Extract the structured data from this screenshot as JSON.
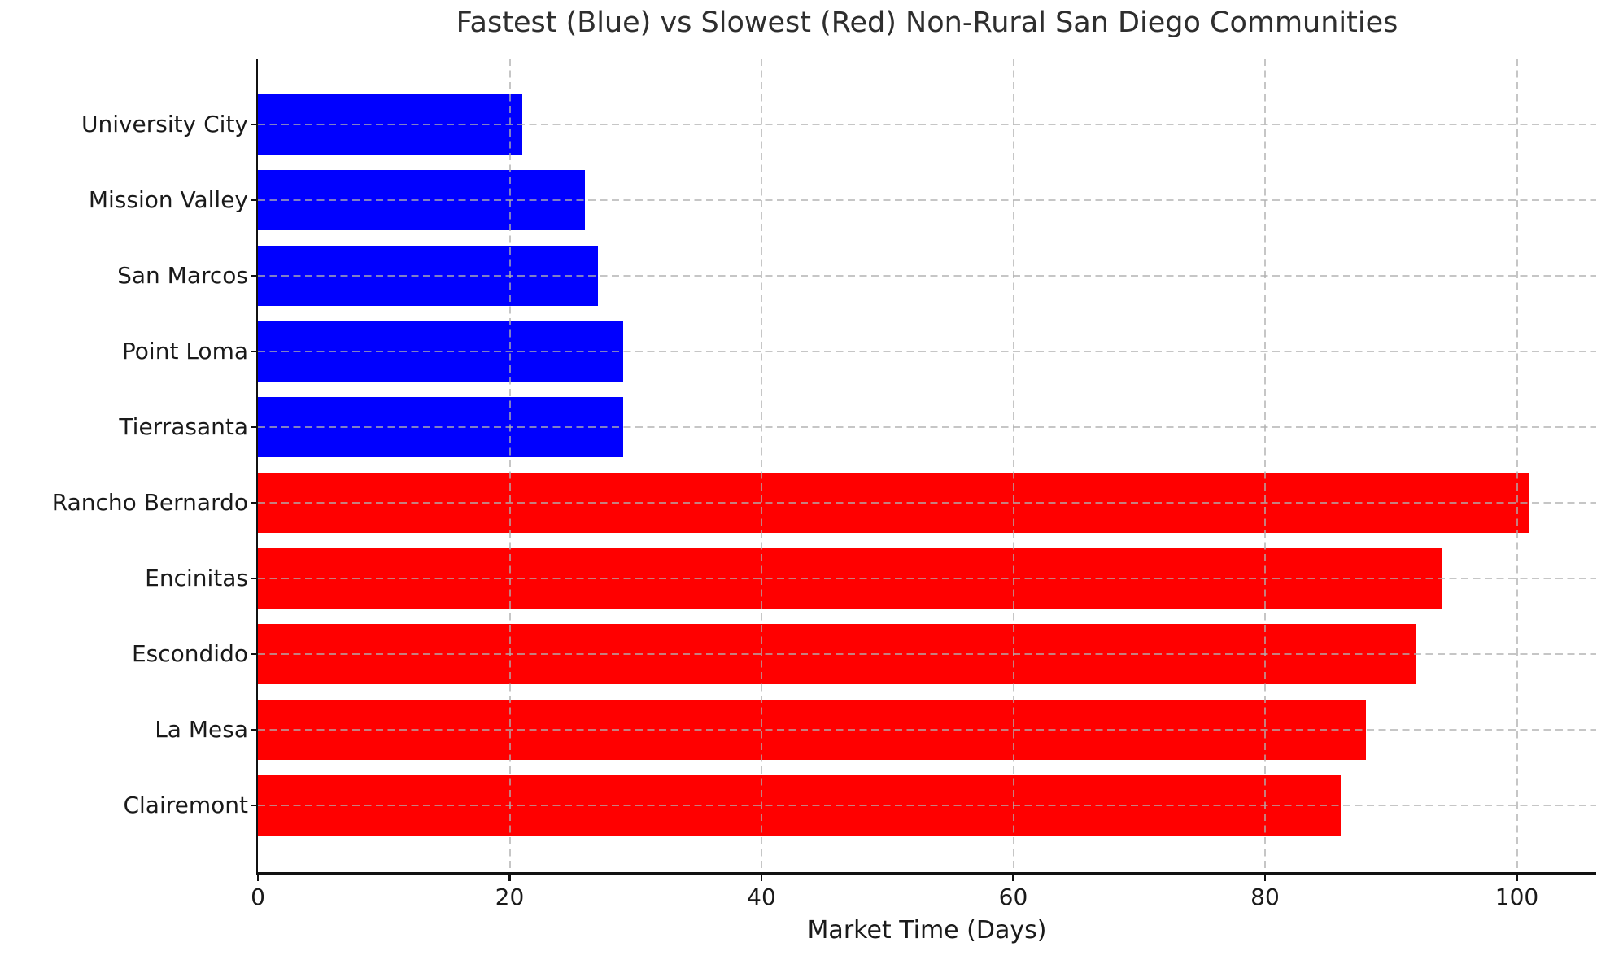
{
  "chart_data": {
    "type": "bar",
    "orientation": "horizontal",
    "title": "Fastest (Blue) vs Slowest (Red) Non-Rural San Diego Communities",
    "xlabel": "Market Time (Days)",
    "ylabel": "",
    "categories": [
      "University City",
      "Mission Valley",
      "San Marcos",
      "Point Loma",
      "Tierrasanta",
      "Rancho Bernardo",
      "Encinitas",
      "Escondido",
      "La Mesa",
      "Clairemont"
    ],
    "values": [
      21,
      26,
      27,
      29,
      29,
      101,
      94,
      92,
      88,
      86
    ],
    "bar_colors": [
      "#0000ff",
      "#0000ff",
      "#0000ff",
      "#0000ff",
      "#0000ff",
      "#ff0000",
      "#ff0000",
      "#ff0000",
      "#ff0000",
      "#ff0000"
    ],
    "groups": [
      "fastest",
      "fastest",
      "fastest",
      "fastest",
      "fastest",
      "slowest",
      "slowest",
      "slowest",
      "slowest",
      "slowest"
    ],
    "x_ticks": [
      0,
      20,
      40,
      60,
      80,
      100
    ],
    "xlim": [
      0,
      106.3
    ],
    "grid": true,
    "grid_style": "dashed",
    "legend_position": "none",
    "colors": {
      "fastest_blue": "#0000ff",
      "slowest_red": "#ff0000",
      "grid": "#c7c7c7",
      "axis": "#111111",
      "title_text": "#2e2e2e",
      "tick_text": "#1a1a1a",
      "background": "#ffffff"
    }
  }
}
